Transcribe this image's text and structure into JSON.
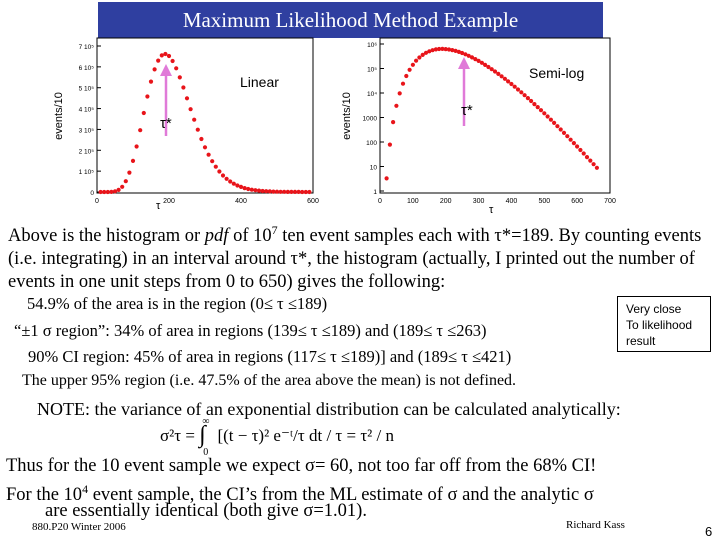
{
  "title": "Maximum Likelihood Method Example",
  "linear_plot": {
    "label": "Linear",
    "ylabel": "events/10",
    "xlabel": "τ",
    "marker": "τ*",
    "yticks": [
      "7 10⁵",
      "6 10⁵",
      "5 10⁵",
      "4 10⁵",
      "3 10⁵",
      "2 10⁵",
      "1 10⁵",
      "0"
    ],
    "xticks": [
      "0",
      "200",
      "400",
      "600"
    ]
  },
  "log_plot": {
    "label": "Semi-log",
    "ylabel": "events/10",
    "xlabel": "τ",
    "marker": "τ*",
    "yticks": [
      "10⁶",
      "10⁵",
      "10⁴",
      "1000",
      "100",
      "10",
      "1"
    ],
    "xticks": [
      "0",
      "100",
      "200",
      "300",
      "400",
      "500",
      "600",
      "700"
    ]
  },
  "paragraph1": {
    "a": "Above is the histogram or ",
    "pdf": "pdf",
    "b": " of 10",
    "sup": "7",
    "c": " ten event samples each with τ*=189. By counting events (i.e. integrating) in an interval around τ*, the histogram (actually, I printed out the number of events in one unit steps from 0 to 650) gives the following:"
  },
  "results": {
    "line1": "54.9% of the area is in the region (0≤ τ ≤189)",
    "line2": "“±1 σ region”: 34% of area in regions (139≤ τ ≤189) and (189≤ τ ≤263)",
    "line3": "90% CI region: 45% of area in regions (117≤ τ ≤189)] and (189≤ τ ≤421)",
    "line4": "The upper 95% region (i.e. 47.5% of the area above the mean) is not defined."
  },
  "callout": {
    "l1": "Very close",
    "l2": "To likelihood",
    "l3": "result"
  },
  "note": "NOTE: the variance of an exponential distribution can be calculated analytically:",
  "formula": {
    "lhs": "σ²τ = ",
    "integral_upper": "∞",
    "integral_lower": "0",
    "body": "[(t − τ)² e⁻ᵗ/τ dt / τ = τ² / n"
  },
  "paragraph2": {
    "line1": "Thus for the 10 event sample we expect σ= 60, not too far off from the 68% CI!",
    "line2a": "For the 10",
    "line2sup": "4",
    "line2b": " event sample, the CI’s from the ML estimate of σ and the analytic σ",
    "line3": "are essentially identical (both give σ=1.01)."
  },
  "footer": {
    "course": "880.P20 Winter 2006",
    "author": "Richard Kass",
    "page": "6"
  },
  "colors": {
    "title_bg": "#2f3fa0",
    "points": "#e8141a",
    "arrow": "#e07ad8"
  }
}
